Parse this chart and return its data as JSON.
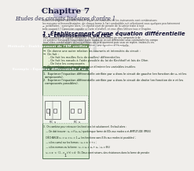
{
  "bg_color": "#f0eeeb",
  "page_bg": "#f8f7f4",
  "chapter_banner_color": "#b8b4cc",
  "chapter_text": "Chapitre 7",
  "subtitle_text": "Etudes des circuits linéaires d'ordre 1",
  "section1_title": "1  Établissement d'une équation différentielle",
  "section1_1_title": "1.1  Établissement de l'ED",
  "green_box_color": "#6a8a5a",
  "green_box_bg": "#e8f0d8",
  "green_box_title": "Méthode : Établissement de l'EM vérifiée par une grandeur",
  "example_box_color": "#5a7a5a",
  "example_box_bg": "#d8e8d0",
  "example_box_title": "Exemple : Équation différentielle d'un circuit d'ordre 1",
  "pdf_watermark": "PDF",
  "page_number": "1",
  "font_size_chapter": 7.5,
  "font_size_subtitle": 4.8,
  "font_size_section": 5.0,
  "font_size_subsection": 4.2,
  "font_size_body": 2.5,
  "font_size_box_title": 3.2,
  "font_size_box_item": 2.6
}
